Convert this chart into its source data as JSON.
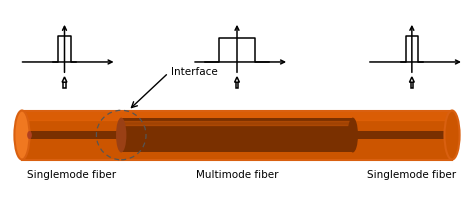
{
  "fig_width": 4.74,
  "fig_height": 1.97,
  "dpi": 100,
  "bg_color": "#ffffff",
  "c_orange_bright": "#e8650a",
  "c_orange_mid": "#cc5500",
  "c_orange_dark": "#7a3000",
  "c_orange_light": "#f07820",
  "c_orange_edge": "#d96010",
  "label_singlemode_left": "Singlemode fiber",
  "label_multimode": "Multimode fiber",
  "label_singlemode_right": "Singlemode fiber",
  "label_interface": "Interface",
  "font_size_label": 7.5,
  "font_size_interface": 7.5
}
